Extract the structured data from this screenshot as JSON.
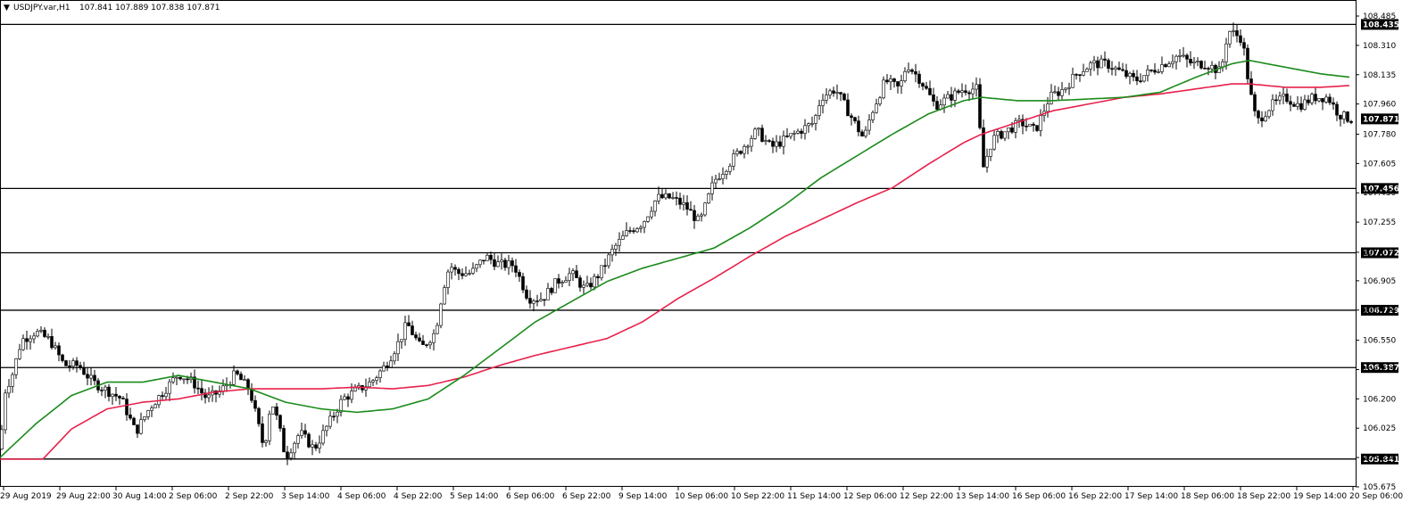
{
  "header": {
    "symbol": "USDJPY.var,H1",
    "ohlc": "107.841 107.889 107.838 107.871"
  },
  "colors": {
    "bull_body": "#ffffff",
    "bear_body": "#000000",
    "wick": "#000000",
    "ma_fast": "#1a8a1a",
    "ma_slow": "#e8204a",
    "level_line": "#000000",
    "level_label_bg": "#000000"
  },
  "chart_data": {
    "type": "candlestick",
    "title": "",
    "ylim": [
      105.675,
      108.485
    ],
    "y_ticks": [
      "108.485",
      "108.310",
      "108.135",
      "107.960",
      "107.780",
      "107.605",
      "107.430",
      "107.255",
      "107.075",
      "106.905",
      "106.730",
      "106.550",
      "106.375",
      "106.200",
      "106.025",
      "105.850",
      "105.675"
    ],
    "x_ticks": [
      "29 Aug 2019",
      "29 Aug 22:00",
      "30 Aug 14:00",
      "2 Sep 06:00",
      "2 Sep 22:00",
      "3 Sep 14:00",
      "4 Sep 06:00",
      "4 Sep 22:00",
      "5 Sep 14:00",
      "6 Sep 06:00",
      "6 Sep 22:00",
      "9 Sep 14:00",
      "10 Sep 06:00",
      "10 Sep 22:00",
      "11 Sep 14:00",
      "12 Sep 06:00",
      "12 Sep 22:00",
      "13 Sep 14:00",
      "16 Sep 06:00",
      "16 Sep 22:00",
      "17 Sep 14:00",
      "18 Sep 06:00",
      "18 Sep 22:00",
      "19 Sep 14:00",
      "20 Sep 06:00"
    ],
    "horizontal_levels": [
      108.435,
      107.456,
      107.072,
      106.729,
      106.387,
      105.841
    ],
    "current_price": 107.871,
    "price_anchors": [
      [
        0,
        105.9
      ],
      [
        6,
        106.25
      ],
      [
        14,
        106.35
      ],
      [
        24,
        106.55
      ],
      [
        40,
        106.6
      ],
      [
        56,
        106.55
      ],
      [
        72,
        106.4
      ],
      [
        88,
        106.4
      ],
      [
        104,
        106.3
      ],
      [
        120,
        106.25
      ],
      [
        136,
        106.2
      ],
      [
        152,
        106.0
      ],
      [
        168,
        106.15
      ],
      [
        184,
        106.25
      ],
      [
        200,
        106.35
      ],
      [
        216,
        106.3
      ],
      [
        232,
        106.2
      ],
      [
        248,
        106.25
      ],
      [
        264,
        106.35
      ],
      [
        280,
        106.25
      ],
      [
        296,
        105.9
      ],
      [
        304,
        106.2
      ],
      [
        312,
        106.05
      ],
      [
        320,
        105.85
      ],
      [
        336,
        106.0
      ],
      [
        352,
        105.9
      ],
      [
        368,
        106.05
      ],
      [
        384,
        106.2
      ],
      [
        400,
        106.25
      ],
      [
        416,
        106.3
      ],
      [
        432,
        106.4
      ],
      [
        448,
        106.55
      ],
      [
        456,
        106.65
      ],
      [
        472,
        106.5
      ],
      [
        488,
        106.6
      ],
      [
        496,
        106.85
      ],
      [
        504,
        107.0
      ],
      [
        512,
        106.95
      ],
      [
        528,
        106.95
      ],
      [
        544,
        107.05
      ],
      [
        560,
        107.0
      ],
      [
        576,
        107.0
      ],
      [
        592,
        106.8
      ],
      [
        608,
        106.8
      ],
      [
        624,
        106.9
      ],
      [
        640,
        106.95
      ],
      [
        656,
        106.85
      ],
      [
        672,
        106.95
      ],
      [
        688,
        107.1
      ],
      [
        704,
        107.2
      ],
      [
        720,
        107.25
      ],
      [
        736,
        107.4
      ],
      [
        752,
        107.4
      ],
      [
        768,
        107.35
      ],
      [
        784,
        107.25
      ],
      [
        800,
        107.5
      ],
      [
        816,
        107.6
      ],
      [
        832,
        107.7
      ],
      [
        848,
        107.8
      ],
      [
        864,
        107.7
      ],
      [
        880,
        107.75
      ],
      [
        896,
        107.8
      ],
      [
        912,
        107.85
      ],
      [
        920,
        108.0
      ],
      [
        936,
        108.05
      ],
      [
        952,
        107.9
      ],
      [
        968,
        107.75
      ],
      [
        976,
        107.9
      ],
      [
        992,
        108.1
      ],
      [
        1008,
        108.05
      ],
      [
        1016,
        108.2
      ],
      [
        1032,
        108.1
      ],
      [
        1048,
        107.95
      ],
      [
        1064,
        108.0
      ],
      [
        1080,
        108.05
      ],
      [
        1096,
        108.05
      ],
      [
        1100,
        107.55
      ],
      [
        1112,
        107.75
      ],
      [
        1128,
        107.8
      ],
      [
        1144,
        107.85
      ],
      [
        1160,
        107.8
      ],
      [
        1176,
        108.0
      ],
      [
        1192,
        108.05
      ],
      [
        1208,
        108.15
      ],
      [
        1224,
        108.2
      ],
      [
        1240,
        108.2
      ],
      [
        1256,
        108.15
      ],
      [
        1272,
        108.1
      ],
      [
        1288,
        108.15
      ],
      [
        1304,
        108.2
      ],
      [
        1320,
        108.25
      ],
      [
        1336,
        108.2
      ],
      [
        1352,
        108.2
      ],
      [
        1368,
        108.15
      ],
      [
        1376,
        108.4
      ],
      [
        1392,
        108.35
      ],
      [
        1400,
        108.05
      ],
      [
        1408,
        107.85
      ],
      [
        1424,
        107.95
      ],
      [
        1440,
        108.0
      ],
      [
        1456,
        107.95
      ],
      [
        1472,
        108.0
      ],
      [
        1488,
        108.0
      ],
      [
        1500,
        107.9
      ],
      [
        1512,
        107.87
      ]
    ],
    "ma_fast_anchors": [
      [
        0,
        105.85
      ],
      [
        40,
        106.05
      ],
      [
        80,
        106.22
      ],
      [
        120,
        106.3
      ],
      [
        160,
        106.3
      ],
      [
        200,
        106.34
      ],
      [
        240,
        106.3
      ],
      [
        280,
        106.26
      ],
      [
        320,
        106.18
      ],
      [
        360,
        106.14
      ],
      [
        400,
        106.12
      ],
      [
        440,
        106.14
      ],
      [
        480,
        106.2
      ],
      [
        520,
        106.34
      ],
      [
        560,
        106.5
      ],
      [
        600,
        106.66
      ],
      [
        640,
        106.78
      ],
      [
        680,
        106.9
      ],
      [
        720,
        106.98
      ],
      [
        760,
        107.04
      ],
      [
        800,
        107.1
      ],
      [
        840,
        107.22
      ],
      [
        880,
        107.36
      ],
      [
        920,
        107.52
      ],
      [
        960,
        107.65
      ],
      [
        1000,
        107.78
      ],
      [
        1040,
        107.9
      ],
      [
        1080,
        107.98
      ],
      [
        1100,
        108.0
      ],
      [
        1140,
        107.98
      ],
      [
        1180,
        107.98
      ],
      [
        1220,
        107.99
      ],
      [
        1260,
        108.0
      ],
      [
        1300,
        108.03
      ],
      [
        1340,
        108.12
      ],
      [
        1380,
        108.2
      ],
      [
        1400,
        108.22
      ],
      [
        1440,
        108.18
      ],
      [
        1480,
        108.14
      ],
      [
        1512,
        108.12
      ]
    ],
    "ma_slow_anchors": [
      [
        0,
        105.84
      ],
      [
        48,
        105.84
      ],
      [
        80,
        106.02
      ],
      [
        120,
        106.14
      ],
      [
        160,
        106.18
      ],
      [
        200,
        106.2
      ],
      [
        240,
        106.24
      ],
      [
        280,
        106.26
      ],
      [
        320,
        106.26
      ],
      [
        360,
        106.26
      ],
      [
        400,
        106.27
      ],
      [
        440,
        106.26
      ],
      [
        480,
        106.28
      ],
      [
        520,
        106.33
      ],
      [
        560,
        106.4
      ],
      [
        600,
        106.46
      ],
      [
        640,
        106.51
      ],
      [
        680,
        106.56
      ],
      [
        720,
        106.66
      ],
      [
        760,
        106.8
      ],
      [
        800,
        106.92
      ],
      [
        840,
        107.05
      ],
      [
        880,
        107.17
      ],
      [
        920,
        107.27
      ],
      [
        960,
        107.37
      ],
      [
        1000,
        107.46
      ],
      [
        1040,
        107.6
      ],
      [
        1080,
        107.73
      ],
      [
        1100,
        107.78
      ],
      [
        1140,
        107.85
      ],
      [
        1180,
        107.92
      ],
      [
        1220,
        107.96
      ],
      [
        1260,
        108.0
      ],
      [
        1300,
        108.02
      ],
      [
        1340,
        108.05
      ],
      [
        1380,
        108.08
      ],
      [
        1400,
        108.08
      ],
      [
        1440,
        108.06
      ],
      [
        1480,
        108.06
      ],
      [
        1512,
        108.07
      ]
    ]
  }
}
